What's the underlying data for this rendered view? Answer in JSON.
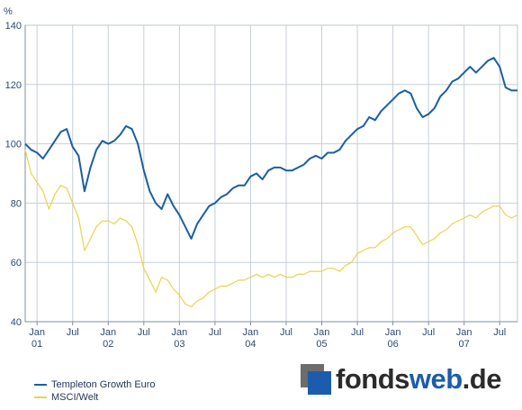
{
  "chart_data": {
    "type": "line",
    "ylabel": "%",
    "ylim": [
      40,
      140
    ],
    "y_ticks": [
      "40",
      "60",
      "80",
      "100",
      "120",
      "140"
    ],
    "x_axis": {
      "start": "2000-11",
      "end": "2007-10",
      "month_ticks": [
        {
          "date": "2001-01",
          "label": "Jan",
          "year": "01"
        },
        {
          "date": "2001-07",
          "label": "Jul",
          "year": ""
        },
        {
          "date": "2002-01",
          "label": "Jan",
          "year": "02"
        },
        {
          "date": "2002-07",
          "label": "Jul",
          "year": ""
        },
        {
          "date": "2003-01",
          "label": "Jan",
          "year": "03"
        },
        {
          "date": "2003-07",
          "label": "Jul",
          "year": ""
        },
        {
          "date": "2004-01",
          "label": "Jan",
          "year": "04"
        },
        {
          "date": "2004-07",
          "label": "Jul",
          "year": ""
        },
        {
          "date": "2005-01",
          "label": "Jan",
          "year": "05"
        },
        {
          "date": "2005-07",
          "label": "Jul",
          "year": ""
        },
        {
          "date": "2006-01",
          "label": "Jan",
          "year": "06"
        },
        {
          "date": "2006-07",
          "label": "Jul",
          "year": ""
        },
        {
          "date": "2007-01",
          "label": "Jan",
          "year": "07"
        },
        {
          "date": "2007-07",
          "label": "Jul",
          "year": ""
        }
      ]
    },
    "grid": true,
    "legend_position": "bottom-left",
    "series": [
      {
        "name": "Templeton Growth Euro",
        "color": "#1a5fa0",
        "points": [
          [
            "2000-11",
            100
          ],
          [
            "2000-12",
            98
          ],
          [
            "2001-01",
            97
          ],
          [
            "2001-02",
            95
          ],
          [
            "2001-03",
            98
          ],
          [
            "2001-04",
            101
          ],
          [
            "2001-05",
            104
          ],
          [
            "2001-06",
            105
          ],
          [
            "2001-07",
            99
          ],
          [
            "2001-08",
            96
          ],
          [
            "2001-09",
            84
          ],
          [
            "2001-10",
            92
          ],
          [
            "2001-11",
            98
          ],
          [
            "2001-12",
            101
          ],
          [
            "2002-01",
            100
          ],
          [
            "2002-02",
            101
          ],
          [
            "2002-03",
            103
          ],
          [
            "2002-04",
            106
          ],
          [
            "2002-05",
            105
          ],
          [
            "2002-06",
            100
          ],
          [
            "2002-07",
            91
          ],
          [
            "2002-08",
            84
          ],
          [
            "2002-09",
            80
          ],
          [
            "2002-10",
            78
          ],
          [
            "2002-11",
            83
          ],
          [
            "2002-12",
            79
          ],
          [
            "2003-01",
            76
          ],
          [
            "2003-02",
            72
          ],
          [
            "2003-03",
            68
          ],
          [
            "2003-04",
            73
          ],
          [
            "2003-05",
            76
          ],
          [
            "2003-06",
            79
          ],
          [
            "2003-07",
            80
          ],
          [
            "2003-08",
            82
          ],
          [
            "2003-09",
            83
          ],
          [
            "2003-10",
            85
          ],
          [
            "2003-11",
            86
          ],
          [
            "2003-12",
            86
          ],
          [
            "2004-01",
            89
          ],
          [
            "2004-02",
            90
          ],
          [
            "2004-03",
            88
          ],
          [
            "2004-04",
            91
          ],
          [
            "2004-05",
            92
          ],
          [
            "2004-06",
            92
          ],
          [
            "2004-07",
            91
          ],
          [
            "2004-08",
            91
          ],
          [
            "2004-09",
            92
          ],
          [
            "2004-10",
            93
          ],
          [
            "2004-11",
            95
          ],
          [
            "2004-12",
            96
          ],
          [
            "2005-01",
            95
          ],
          [
            "2005-02",
            97
          ],
          [
            "2005-03",
            97
          ],
          [
            "2005-04",
            98
          ],
          [
            "2005-05",
            101
          ],
          [
            "2005-06",
            103
          ],
          [
            "2005-07",
            105
          ],
          [
            "2005-08",
            106
          ],
          [
            "2005-09",
            109
          ],
          [
            "2005-10",
            108
          ],
          [
            "2005-11",
            111
          ],
          [
            "2005-12",
            113
          ],
          [
            "2006-01",
            115
          ],
          [
            "2006-02",
            117
          ],
          [
            "2006-03",
            118
          ],
          [
            "2006-04",
            117
          ],
          [
            "2006-05",
            112
          ],
          [
            "2006-06",
            109
          ],
          [
            "2006-07",
            110
          ],
          [
            "2006-08",
            112
          ],
          [
            "2006-09",
            116
          ],
          [
            "2006-10",
            118
          ],
          [
            "2006-11",
            121
          ],
          [
            "2006-12",
            122
          ],
          [
            "2007-01",
            124
          ],
          [
            "2007-02",
            126
          ],
          [
            "2007-03",
            124
          ],
          [
            "2007-04",
            126
          ],
          [
            "2007-05",
            128
          ],
          [
            "2007-06",
            129
          ],
          [
            "2007-07",
            126
          ],
          [
            "2007-08",
            119
          ],
          [
            "2007-09",
            118
          ],
          [
            "2007-10",
            118
          ]
        ]
      },
      {
        "name": "MSCI/Welt",
        "color": "#e8d44a",
        "points": [
          [
            "2000-11",
            98
          ],
          [
            "2000-12",
            90
          ],
          [
            "2001-01",
            87
          ],
          [
            "2001-02",
            84
          ],
          [
            "2001-03",
            78
          ],
          [
            "2001-04",
            83
          ],
          [
            "2001-05",
            86
          ],
          [
            "2001-06",
            85
          ],
          [
            "2001-07",
            80
          ],
          [
            "2001-08",
            75
          ],
          [
            "2001-09",
            64
          ],
          [
            "2001-10",
            68
          ],
          [
            "2001-11",
            72
          ],
          [
            "2001-12",
            74
          ],
          [
            "2002-01",
            74
          ],
          [
            "2002-02",
            73
          ],
          [
            "2002-03",
            75
          ],
          [
            "2002-04",
            74
          ],
          [
            "2002-05",
            72
          ],
          [
            "2002-06",
            66
          ],
          [
            "2002-07",
            58
          ],
          [
            "2002-08",
            54
          ],
          [
            "2002-09",
            50
          ],
          [
            "2002-10",
            55
          ],
          [
            "2002-11",
            54
          ],
          [
            "2002-12",
            51
          ],
          [
            "2003-01",
            49
          ],
          [
            "2003-02",
            46
          ],
          [
            "2003-03",
            45
          ],
          [
            "2003-04",
            47
          ],
          [
            "2003-05",
            48
          ],
          [
            "2003-06",
            50
          ],
          [
            "2003-07",
            51
          ],
          [
            "2003-08",
            52
          ],
          [
            "2003-09",
            52
          ],
          [
            "2003-10",
            53
          ],
          [
            "2003-11",
            54
          ],
          [
            "2003-12",
            54
          ],
          [
            "2004-01",
            55
          ],
          [
            "2004-02",
            56
          ],
          [
            "2004-03",
            55
          ],
          [
            "2004-04",
            56
          ],
          [
            "2004-05",
            55
          ],
          [
            "2004-06",
            56
          ],
          [
            "2004-07",
            55
          ],
          [
            "2004-08",
            55
          ],
          [
            "2004-09",
            56
          ],
          [
            "2004-10",
            56
          ],
          [
            "2004-11",
            57
          ],
          [
            "2004-12",
            57
          ],
          [
            "2005-01",
            57
          ],
          [
            "2005-02",
            58
          ],
          [
            "2005-03",
            58
          ],
          [
            "2005-04",
            57
          ],
          [
            "2005-05",
            59
          ],
          [
            "2005-06",
            60
          ],
          [
            "2005-07",
            63
          ],
          [
            "2005-08",
            64
          ],
          [
            "2005-09",
            65
          ],
          [
            "2005-10",
            65
          ],
          [
            "2005-11",
            67
          ],
          [
            "2005-12",
            68
          ],
          [
            "2006-01",
            70
          ],
          [
            "2006-02",
            71
          ],
          [
            "2006-03",
            72
          ],
          [
            "2006-04",
            72
          ],
          [
            "2006-05",
            69
          ],
          [
            "2006-06",
            66
          ],
          [
            "2006-07",
            67
          ],
          [
            "2006-08",
            68
          ],
          [
            "2006-09",
            70
          ],
          [
            "2006-10",
            71
          ],
          [
            "2006-11",
            73
          ],
          [
            "2006-12",
            74
          ],
          [
            "2007-01",
            75
          ],
          [
            "2007-02",
            76
          ],
          [
            "2007-03",
            75
          ],
          [
            "2007-04",
            77
          ],
          [
            "2007-05",
            78
          ],
          [
            "2007-06",
            79
          ],
          [
            "2007-07",
            79
          ],
          [
            "2007-08",
            76
          ],
          [
            "2007-09",
            75
          ],
          [
            "2007-10",
            76
          ]
        ]
      }
    ]
  },
  "legend": [
    {
      "name": "Templeton Growth Euro",
      "color": "#1a5fa0"
    },
    {
      "name": "MSCI/Welt",
      "color": "#e8d44a"
    }
  ],
  "logo": {
    "part1": "fonds",
    "part2": "web",
    "part3": ".de",
    "color_dark": "#2b2b2b",
    "color_blue": "#1b5cae"
  }
}
